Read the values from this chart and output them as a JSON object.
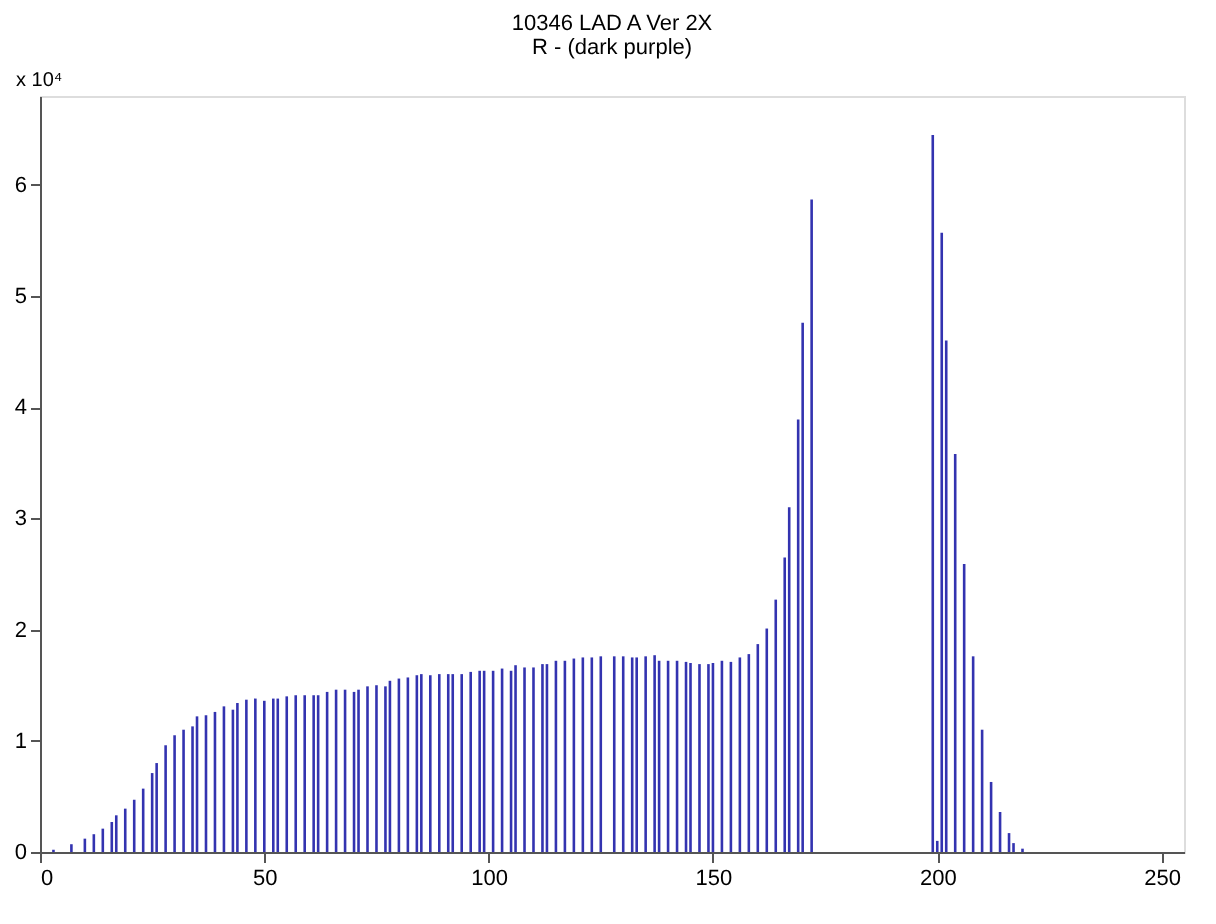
{
  "chart_data": {
    "type": "bar",
    "title": "10346 LAD A Ver 2X",
    "subtitle": "R - (dark purple)",
    "annotations": [
      "x 10⁴"
    ],
    "x": [
      3,
      7,
      10,
      12,
      14,
      16,
      17,
      19,
      21,
      23,
      25,
      26,
      28,
      30,
      32,
      34,
      35,
      37,
      39,
      41,
      43,
      44,
      46,
      48,
      50,
      52,
      53,
      55,
      57,
      59,
      61,
      62,
      64,
      66,
      68,
      70,
      71,
      73,
      75,
      77,
      78,
      80,
      82,
      84,
      85,
      87,
      89,
      91,
      92,
      94,
      96,
      98,
      99,
      101,
      103,
      105,
      106,
      108,
      110,
      112,
      113,
      115,
      117,
      119,
      121,
      123,
      125,
      128,
      130,
      132,
      133,
      135,
      137,
      138,
      140,
      142,
      144,
      145,
      147,
      149,
      150,
      152,
      154,
      156,
      158,
      160,
      162,
      164,
      166,
      167,
      169,
      170,
      172,
      174,
      176,
      177,
      179,
      181,
      183,
      185,
      187,
      189,
      191,
      193,
      195,
      197,
      199,
      200,
      201,
      202,
      204,
      206,
      208,
      210,
      212,
      214,
      216,
      217,
      219
    ],
    "values": [
      0.02,
      0.07,
      0.12,
      0.16,
      0.21,
      0.27,
      0.33,
      0.39,
      0.47,
      0.57,
      0.71,
      0.8,
      0.96,
      1.05,
      1.1,
      1.13,
      1.22,
      1.23,
      1.26,
      1.31,
      1.28,
      1.34,
      1.37,
      1.38,
      1.36,
      1.38,
      1.38,
      1.4,
      1.41,
      1.41,
      1.41,
      1.41,
      1.44,
      1.46,
      1.46,
      1.44,
      1.46,
      1.49,
      1.5,
      1.49,
      1.54,
      1.56,
      1.57,
      1.59,
      1.6,
      1.59,
      1.6,
      1.6,
      1.6,
      1.6,
      1.62,
      1.63,
      1.63,
      1.63,
      1.65,
      1.63,
      1.68,
      1.66,
      1.66,
      1.69,
      1.69,
      1.72,
      1.72,
      1.74,
      1.75,
      1.75,
      1.76,
      1.76,
      1.76,
      1.75,
      1.75,
      1.76,
      1.77,
      1.72,
      1.72,
      1.72,
      1.71,
      1.7,
      1.69,
      1.69,
      1.7,
      1.72,
      1.71,
      1.75,
      1.78,
      1.87,
      2.01,
      2.27,
      2.65,
      3.1,
      3.89,
      4.76,
      5.87,
      null,
      null,
      null,
      null,
      null,
      null,
      null,
      null,
      null,
      null,
      null,
      null,
      null,
      6.45,
      0.1,
      5.57,
      4.6,
      3.58,
      2.59,
      1.76,
      1.1,
      0.63,
      0.36,
      0.17,
      0.08,
      0.03
    ],
    "color": "#3333b0",
    "xlim": [
      0,
      255
    ],
    "xticks": [
      0,
      50,
      100,
      150,
      200,
      250
    ],
    "ylim": [
      0,
      6.8
    ],
    "yticks": [
      0,
      1,
      2,
      3,
      4,
      5,
      6
    ],
    "grid": false
  }
}
